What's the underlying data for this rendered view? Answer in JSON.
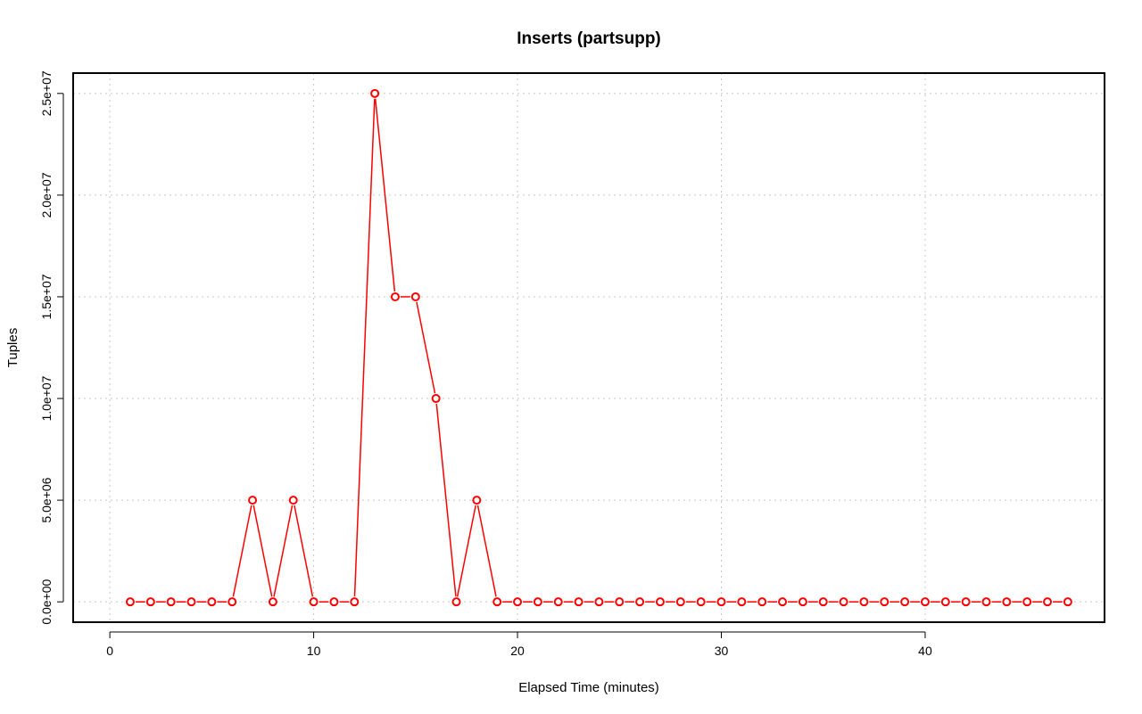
{
  "chart_data": {
    "type": "line",
    "title": "Inserts (partsupp)",
    "xlabel": "Elapsed Time (minutes)",
    "ylabel": "Tuples",
    "xlim": [
      -1.8,
      48.8
    ],
    "ylim": [
      -1000000,
      26000000
    ],
    "xticks": [
      0,
      10,
      20,
      30,
      40
    ],
    "xtick_labels": [
      "0",
      "10",
      "20",
      "30",
      "40"
    ],
    "yticks": [
      0,
      5000000,
      10000000,
      15000000,
      20000000,
      25000000
    ],
    "ytick_labels": [
      "0.0e+00",
      "5.0e+06",
      "1.0e+07",
      "1.5e+07",
      "2.0e+07",
      "2.5e+07"
    ],
    "grid": true,
    "series": [
      {
        "color": "#ff0000",
        "marker": "open-circle",
        "x": [
          1,
          2,
          3,
          4,
          5,
          6,
          7,
          8,
          9,
          10,
          11,
          12,
          13,
          14,
          15,
          16,
          17,
          18,
          19,
          20,
          21,
          22,
          23,
          24,
          25,
          26,
          27,
          28,
          29,
          30,
          31,
          32,
          33,
          34,
          35,
          36,
          37,
          38,
          39,
          40,
          41,
          42,
          43,
          44,
          45,
          46,
          47
        ],
        "values": [
          0,
          0,
          0,
          0,
          0,
          0,
          5000000,
          0,
          5000000,
          0,
          0,
          0,
          25000000,
          15000000,
          15000000,
          10000000,
          0,
          5000000,
          0,
          0,
          0,
          0,
          0,
          0,
          0,
          0,
          0,
          0,
          0,
          0,
          0,
          0,
          0,
          0,
          0,
          0,
          0,
          0,
          0,
          0,
          0,
          0,
          0,
          0,
          0,
          0,
          0
        ]
      }
    ]
  }
}
